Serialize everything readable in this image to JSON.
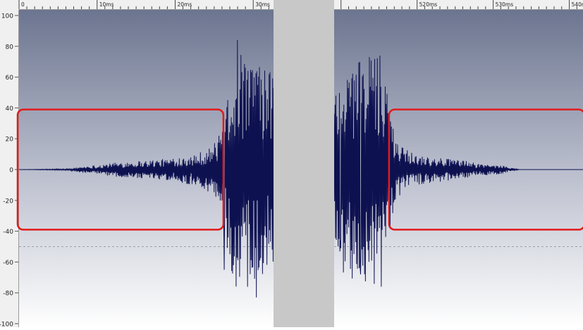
{
  "window": {
    "divider_color": "#c8c8c8",
    "ruler_color": "#f0f0f0",
    "wave_color": "#0d1150",
    "highlight_color": "#e11b1b"
  },
  "chart_data": [
    {
      "type": "line",
      "title": "",
      "xlabel": "",
      "ylabel": "",
      "xlim": [
        0,
        32.6
      ],
      "ylim": [
        -100,
        100
      ],
      "x_unit": "ms",
      "x_ticks": [
        {
          "value": 0,
          "label": "0"
        },
        {
          "value": 10,
          "label": "10ms"
        },
        {
          "value": 20,
          "label": "20ms"
        },
        {
          "value": 30,
          "label": "30ms"
        }
      ],
      "y_ticks": [
        100,
        80,
        60,
        40,
        20,
        0,
        -20,
        -40,
        -60,
        -80,
        -100
      ],
      "y_tick_labels": [
        "100",
        "80",
        "60",
        "40",
        "20",
        "0",
        "-20",
        "-40",
        "-60",
        "-80",
        "-100"
      ],
      "guide_lines": [
        50,
        -50
      ],
      "grid": false,
      "highlight": {
        "x": [
          0,
          26
        ],
        "y": [
          -39,
          39
        ],
        "color": "#e11b1b"
      },
      "series": [
        {
          "envelope": [
            [
              0,
              0
            ],
            [
              6.5,
              0.5
            ],
            [
              7,
              1
            ],
            [
              8,
              2
            ],
            [
              10,
              3
            ],
            [
              13,
              5
            ],
            [
              16,
              6
            ],
            [
              19,
              7
            ],
            [
              21,
              9
            ],
            [
              23,
              11
            ],
            [
              24.5,
              15
            ],
            [
              25.5,
              20
            ],
            [
              26,
              30
            ],
            [
              26.5,
              45
            ],
            [
              27,
              62
            ],
            [
              28,
              80
            ],
            [
              29,
              70
            ],
            [
              30,
              78
            ],
            [
              31,
              70
            ],
            [
              32,
              65
            ],
            [
              32.6,
              60
            ]
          ],
          "peaks": [
            {
              "x": 28.0,
              "y": 84
            },
            {
              "x": 30.4,
              "y": -83
            },
            {
              "x": 29.3,
              "y": -76
            },
            {
              "x": 26.3,
              "y": -65
            }
          ]
        }
      ]
    },
    {
      "type": "line",
      "title": "",
      "xlabel": "",
      "ylabel": "",
      "xlim": [
        509.1,
        541.8
      ],
      "ylim": [
        -100,
        100
      ],
      "x_unit": "ms",
      "x_ticks": [
        {
          "value": 510,
          "label": ""
        },
        {
          "value": 520,
          "label": "520ms"
        },
        {
          "value": 530,
          "label": "530ms"
        },
        {
          "value": 540,
          "label": "540ms"
        }
      ],
      "guide_lines": [
        50,
        -50
      ],
      "grid": false,
      "highlight": {
        "x": [
          516.5,
          541.8
        ],
        "y": [
          -39,
          39
        ],
        "color": "#e11b1b"
      },
      "series": [
        {
          "envelope": [
            [
              509.1,
              55
            ],
            [
              510,
              65
            ],
            [
              511,
              72
            ],
            [
              512,
              75
            ],
            [
              513.5,
              78
            ],
            [
              515,
              72
            ],
            [
              515.8,
              62
            ],
            [
              516.3,
              45
            ],
            [
              517,
              25
            ],
            [
              518,
              15
            ],
            [
              520,
              10
            ],
            [
              523,
              8
            ],
            [
              526,
              6
            ],
            [
              528,
              4
            ],
            [
              531,
              3
            ],
            [
              532.5,
              1
            ],
            [
              533.5,
              0
            ],
            [
              541.8,
              0
            ]
          ],
          "peaks": [
            {
              "x": 515.1,
              "y": 74
            },
            {
              "x": 515.3,
              "y": -76
            },
            {
              "x": 512.6,
              "y": -68
            },
            {
              "x": 509.9,
              "y": -46
            }
          ]
        }
      ]
    }
  ]
}
